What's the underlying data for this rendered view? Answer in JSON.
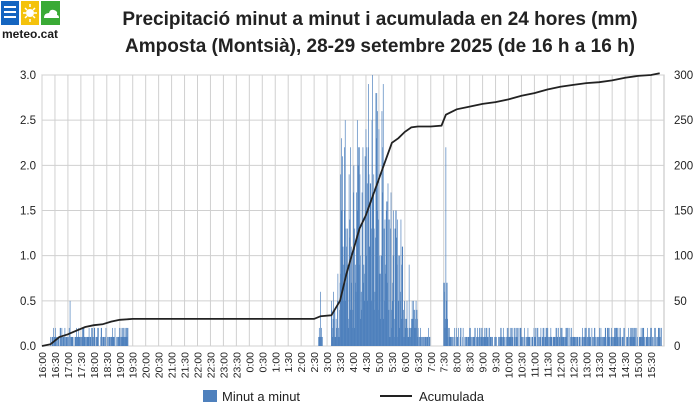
{
  "brand": {
    "name": "meteo.cat",
    "colors": {
      "blue": "#1565c0",
      "yellow": "#f4c20d",
      "green": "#3aaa35"
    }
  },
  "header": {
    "title_line1": "Precipitació minut a minut i acumulada en 24 hores (mm)",
    "title_line2": "Amposta (Montsià), 28-29 setembre 2025 (de 16 h a 16 h)"
  },
  "chart_data": {
    "type": "bar+line",
    "title": "Precipitació minut a minut i acumulada en 24 hores (mm)",
    "subtitle": "Amposta (Montsià), 28-29 setembre 2025 (de 16 h a 16 h)",
    "x_tick_labels": [
      "16:00",
      "16:30",
      "17:00",
      "17:30",
      "18:00",
      "18:30",
      "19:00",
      "19:30",
      "20:00",
      "20:30",
      "21:00",
      "21:30",
      "22:00",
      "22:30",
      "23:00",
      "23:30",
      "0:00",
      "0:30",
      "1:00",
      "1:30",
      "2:00",
      "2:30",
      "3:00",
      "3:30",
      "4:00",
      "4:30",
      "5:00",
      "5:30",
      "6:00",
      "6:30",
      "7:00",
      "7:30",
      "8:00",
      "8:30",
      "9:00",
      "9:30",
      "10:00",
      "10:30",
      "11:00",
      "11:30",
      "12:00",
      "12:30",
      "13:00",
      "13:30",
      "14:00",
      "14:30",
      "15:00",
      "15:30"
    ],
    "y_left": {
      "range": [
        0,
        3.0
      ],
      "ticks": [
        "0.0",
        "0.5",
        "1.0",
        "1.5",
        "2.0",
        "2.5",
        "3.0"
      ]
    },
    "y_right": {
      "range": [
        0,
        300
      ],
      "ticks": [
        "0",
        "50",
        "100",
        "150",
        "200",
        "250",
        "300"
      ]
    },
    "grid": true,
    "legend_position": "bottom",
    "colors": {
      "bars": "#4f81bd",
      "line": "#222222"
    },
    "series": [
      {
        "name": "Minut a minut",
        "axis": "left",
        "kind": "bar",
        "segments": [
          {
            "t": [
              "16:20",
              "16:50"
            ],
            "typ": 0.1,
            "peak": 0.7,
            "at": "16:35"
          },
          {
            "t": [
              "16:50",
              "17:30"
            ],
            "typ": 0.1,
            "peak": 0.5,
            "at": "17:05"
          },
          {
            "t": [
              "17:30",
              "19:20"
            ],
            "typ": 0.1,
            "peak": 0.2,
            "at": "18:10"
          },
          {
            "t": [
              "2:40",
              "2:50"
            ],
            "typ": 0.1,
            "peak": 0.6,
            "at": "2:45"
          },
          {
            "t": [
              "3:10",
              "3:30"
            ],
            "typ": 0.3,
            "peak": 0.8,
            "at": "3:25"
          },
          {
            "t": [
              "3:30",
              "4:00"
            ],
            "typ": 1.3,
            "peak": 2.5,
            "at": "3:42"
          },
          {
            "t": [
              "4:00",
              "4:30"
            ],
            "typ": 1.2,
            "peak": 2.5,
            "at": "4:10"
          },
          {
            "t": [
              "4:30",
              "5:00"
            ],
            "typ": 1.6,
            "peak": 3.0,
            "at": "4:45"
          },
          {
            "t": [
              "5:00",
              "5:30"
            ],
            "typ": 1.4,
            "peak": 2.9,
            "at": "5:10"
          },
          {
            "t": [
              "5:30",
              "6:00"
            ],
            "typ": 0.8,
            "peak": 1.5,
            "at": "5:40"
          },
          {
            "t": [
              "6:00",
              "6:30"
            ],
            "typ": 0.3,
            "peak": 0.9,
            "at": "6:10"
          },
          {
            "t": [
              "6:30",
              "7:00"
            ],
            "typ": 0.1,
            "peak": 0.4,
            "at": "6:50"
          },
          {
            "t": [
              "7:30",
              "7:40"
            ],
            "typ": 0.4,
            "peak": 2.2,
            "at": "7:35"
          },
          {
            "t": [
              "7:40",
              "15:55"
            ],
            "typ": 0.1,
            "peak": 0.2,
            "at": "8:10"
          }
        ]
      },
      {
        "name": "Acumulada",
        "axis": "right",
        "kind": "line",
        "points": [
          [
            "16:00",
            0
          ],
          [
            "16:20",
            2
          ],
          [
            "16:40",
            10
          ],
          [
            "17:00",
            13
          ],
          [
            "17:20",
            17
          ],
          [
            "17:40",
            21
          ],
          [
            "18:00",
            23
          ],
          [
            "18:20",
            24
          ],
          [
            "18:40",
            27
          ],
          [
            "19:00",
            29
          ],
          [
            "19:30",
            30
          ],
          [
            "20:00",
            30
          ],
          [
            "2:30",
            30
          ],
          [
            "2:45",
            33
          ],
          [
            "3:10",
            34
          ],
          [
            "3:30",
            50
          ],
          [
            "3:45",
            80
          ],
          [
            "4:00",
            105
          ],
          [
            "4:15",
            130
          ],
          [
            "4:30",
            145
          ],
          [
            "4:45",
            165
          ],
          [
            "5:00",
            185
          ],
          [
            "5:15",
            205
          ],
          [
            "5:30",
            225
          ],
          [
            "5:45",
            230
          ],
          [
            "6:00",
            237
          ],
          [
            "6:15",
            242
          ],
          [
            "6:30",
            243
          ],
          [
            "7:00",
            243
          ],
          [
            "7:25",
            244
          ],
          [
            "7:35",
            256
          ],
          [
            "8:00",
            262
          ],
          [
            "8:30",
            265
          ],
          [
            "9:00",
            268
          ],
          [
            "9:30",
            270
          ],
          [
            "10:00",
            273
          ],
          [
            "10:30",
            277
          ],
          [
            "11:00",
            280
          ],
          [
            "11:30",
            284
          ],
          [
            "12:00",
            287
          ],
          [
            "12:30",
            289
          ],
          [
            "13:00",
            291
          ],
          [
            "13:30",
            292
          ],
          [
            "14:00",
            294
          ],
          [
            "14:30",
            297
          ],
          [
            "15:00",
            299
          ],
          [
            "15:30",
            300
          ],
          [
            "15:50",
            302
          ]
        ]
      }
    ]
  }
}
